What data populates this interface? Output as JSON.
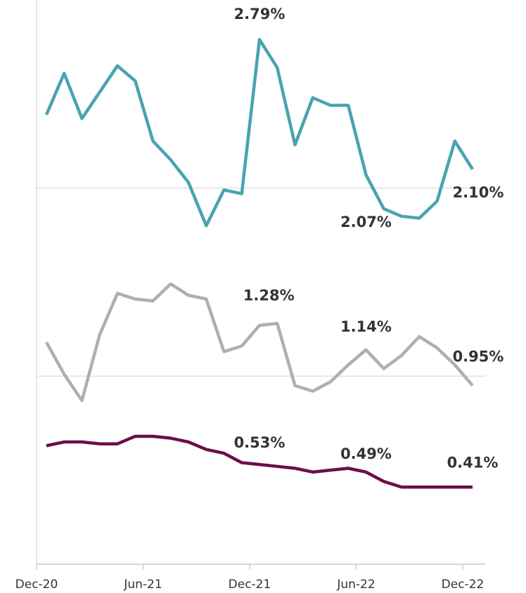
{
  "chart_data": {
    "type": "line",
    "categories": [
      "Dec-20",
      null,
      null,
      null,
      null,
      null,
      "Jun-21",
      null,
      null,
      null,
      null,
      null,
      "Dec-21",
      null,
      null,
      null,
      null,
      null,
      "Jun-22",
      null,
      null,
      null,
      null,
      null,
      "Dec-22"
    ],
    "series": [
      {
        "color": "#4aa3b0",
        "values": [
          2.39,
          2.61,
          2.37,
          2.51,
          2.65,
          2.57,
          2.25,
          2.15,
          2.03,
          1.8,
          1.99,
          1.97,
          2.79,
          2.64,
          2.23,
          2.48,
          2.44,
          2.44,
          2.07,
          1.89,
          1.85,
          1.84,
          1.93,
          2.25,
          2.1
        ],
        "value_labels": [
          null,
          null,
          null,
          null,
          null,
          null,
          null,
          null,
          null,
          null,
          null,
          null,
          "2.79%",
          null,
          null,
          null,
          null,
          null,
          "2.07%",
          null,
          null,
          null,
          null,
          null,
          "2.10%"
        ]
      },
      {
        "color": "#a9b1b6",
        "values": [
          1.18,
          1.01,
          0.87,
          1.22,
          1.44,
          1.41,
          1.4,
          1.49,
          1.43,
          1.41,
          1.13,
          1.16,
          1.27,
          1.28,
          0.95,
          0.92,
          0.97,
          1.06,
          1.14,
          1.04,
          1.11,
          1.21,
          1.15,
          1.06,
          0.95
        ],
        "value_labels": [
          null,
          null,
          null,
          null,
          null,
          null,
          null,
          null,
          null,
          null,
          null,
          null,
          null,
          "1.28%",
          null,
          null,
          null,
          null,
          "1.14%",
          null,
          null,
          null,
          null,
          null,
          "0.95%"
        ]
      },
      {
        "color": "#6e0d4a",
        "values": [
          0.63,
          0.65,
          0.65,
          0.64,
          0.64,
          0.68,
          0.68,
          0.67,
          0.65,
          0.61,
          0.59,
          0.54,
          0.53,
          0.52,
          0.51,
          0.49,
          0.5,
          0.51,
          0.49,
          0.44,
          0.41,
          0.41,
          0.41,
          0.41,
          0.41
        ],
        "value_labels": [
          null,
          null,
          null,
          null,
          null,
          null,
          null,
          null,
          null,
          null,
          null,
          null,
          "0.53%",
          null,
          null,
          null,
          null,
          null,
          "0.49%",
          null,
          null,
          null,
          null,
          null,
          "0.41%"
        ]
      }
    ],
    "ylim": [
      0,
      3
    ],
    "yticks": [
      1,
      2
    ],
    "grid": true
  }
}
